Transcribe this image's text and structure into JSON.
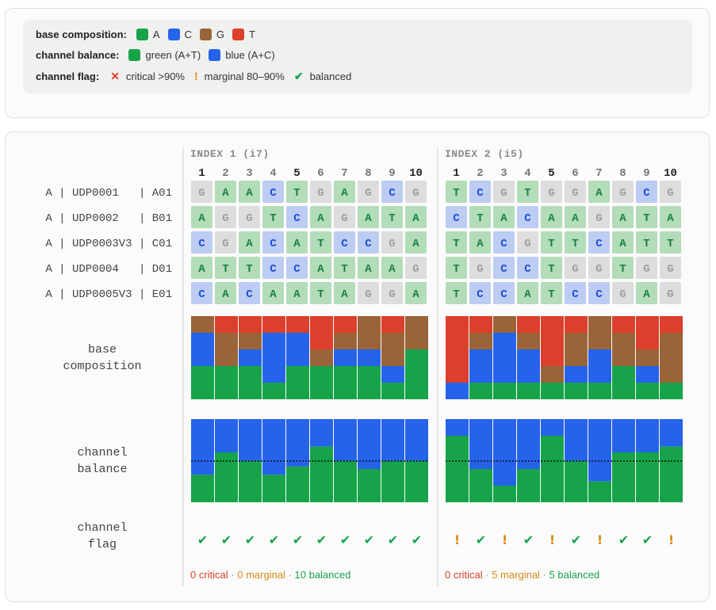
{
  "legend": {
    "base_composition": {
      "label": "base composition:",
      "items": [
        {
          "name": "A",
          "color": "#16a34a"
        },
        {
          "name": "C",
          "color": "#2563eb"
        },
        {
          "name": "G",
          "color": "#9a6438"
        },
        {
          "name": "T",
          "color": "#dc3f2c"
        }
      ]
    },
    "channel_balance": {
      "label": "channel balance:",
      "items": [
        {
          "name": "green (A+T)",
          "color": "#16a34a"
        },
        {
          "name": "blue (A+C)",
          "color": "#2563eb"
        }
      ]
    },
    "channel_flag": {
      "label": "channel flag:",
      "items": [
        {
          "symbol": "✕",
          "name": "critical >90%",
          "color": "#dc3f2c"
        },
        {
          "symbol": "!",
          "name": "marginal 80–90%",
          "color": "#d98a16"
        },
        {
          "symbol": "✔",
          "name": "balanced",
          "color": "#16a34a"
        }
      ]
    }
  },
  "row_labels": {
    "base_composition": [
      "base",
      "composition"
    ],
    "channel_balance": [
      "channel",
      "balance"
    ],
    "channel_flag": [
      "channel",
      "flag"
    ]
  },
  "chart_data": {
    "type": "heatmap",
    "samples": [
      "A | UDP0001   | A01",
      "A | UDP0002   | B01",
      "A | UDP0003V3 | C01",
      "A | UDP0004   | D01",
      "A | UDP0005V3 | E01"
    ],
    "positions": [
      1,
      2,
      3,
      4,
      5,
      6,
      7,
      8,
      9,
      10
    ],
    "bold_positions": [
      1,
      5,
      10
    ],
    "indexes": [
      {
        "title": "INDEX 1 (i7)",
        "sequences": [
          "GAACTGAGCG",
          "AGGTCAGATA",
          "CGACATCCGA",
          "ATTCCATAAG",
          "CACAATAGGA"
        ],
        "composition": [
          {
            "A": 0.4,
            "C": 0.4,
            "G": 0.2,
            "T": 0.0
          },
          {
            "A": 0.4,
            "C": 0.0,
            "G": 0.4,
            "T": 0.2
          },
          {
            "A": 0.4,
            "C": 0.2,
            "G": 0.2,
            "T": 0.2
          },
          {
            "A": 0.2,
            "C": 0.6,
            "G": 0.0,
            "T": 0.2
          },
          {
            "A": 0.4,
            "C": 0.4,
            "G": 0.0,
            "T": 0.2
          },
          {
            "A": 0.4,
            "C": 0.0,
            "G": 0.2,
            "T": 0.4
          },
          {
            "A": 0.4,
            "C": 0.2,
            "G": 0.2,
            "T": 0.2
          },
          {
            "A": 0.4,
            "C": 0.2,
            "G": 0.4,
            "T": 0.0
          },
          {
            "A": 0.2,
            "C": 0.2,
            "G": 0.4,
            "T": 0.2
          },
          {
            "A": 0.6,
            "C": 0.0,
            "G": 0.4,
            "T": 0.0
          }
        ],
        "green_fraction": [
          0.33,
          0.6,
          0.5,
          0.33,
          0.43,
          0.67,
          0.5,
          0.4,
          0.5,
          0.5
        ],
        "flags": [
          "balanced",
          "balanced",
          "balanced",
          "balanced",
          "balanced",
          "balanced",
          "balanced",
          "balanced",
          "balanced",
          "balanced"
        ],
        "summary": {
          "critical": "0 critical",
          "marginal": "0 marginal",
          "balanced": "10 balanced",
          "sep": " · "
        }
      },
      {
        "title": "INDEX 2 (i5)",
        "sequences": [
          "TCGTGGAGCG",
          "CTACAAGATA",
          "TACGTTCATT",
          "TGCCTGGTGG",
          "TCCATCCGAG"
        ],
        "composition": [
          {
            "A": 0.0,
            "C": 0.2,
            "G": 0.0,
            "T": 0.8
          },
          {
            "A": 0.2,
            "C": 0.4,
            "G": 0.2,
            "T": 0.2
          },
          {
            "A": 0.2,
            "C": 0.6,
            "G": 0.2,
            "T": 0.0
          },
          {
            "A": 0.2,
            "C": 0.4,
            "G": 0.2,
            "T": 0.2
          },
          {
            "A": 0.2,
            "C": 0.0,
            "G": 0.2,
            "T": 0.6
          },
          {
            "A": 0.2,
            "C": 0.2,
            "G": 0.4,
            "T": 0.2
          },
          {
            "A": 0.2,
            "C": 0.4,
            "G": 0.4,
            "T": 0.0
          },
          {
            "A": 0.4,
            "C": 0.0,
            "G": 0.4,
            "T": 0.2
          },
          {
            "A": 0.2,
            "C": 0.2,
            "G": 0.2,
            "T": 0.4
          },
          {
            "A": 0.2,
            "C": 0.0,
            "G": 0.6,
            "T": 0.2
          }
        ],
        "green_fraction": [
          0.8,
          0.4,
          0.2,
          0.4,
          0.8,
          0.5,
          0.25,
          0.6,
          0.6,
          0.67
        ],
        "flags": [
          "marginal",
          "balanced",
          "marginal",
          "balanced",
          "marginal",
          "balanced",
          "marginal",
          "balanced",
          "balanced",
          "marginal"
        ],
        "summary": {
          "critical": "0 critical",
          "marginal": "5 marginal",
          "balanced": "5 balanced",
          "sep": " · "
        }
      }
    ],
    "balance_reference": 0.5
  },
  "colors": {
    "A": "#16a34a",
    "C": "#2563eb",
    "G": "#9a6438",
    "T": "#dc3f2c",
    "tile_A": "#b3dcb8",
    "tile_C": "#bcccf2",
    "tile_G": "#dddddd",
    "tile_T": "#b3dcb8",
    "text_A": "#15803d",
    "text_C": "#1d4ed8",
    "text_G": "#9aa09a",
    "text_T": "#15803d",
    "flag_balanced": "#16a34a",
    "flag_marginal": "#d98a16",
    "flag_critical": "#dc3f2c"
  },
  "flag_symbols": {
    "balanced": "✔",
    "marginal": "!",
    "critical": "✕"
  }
}
